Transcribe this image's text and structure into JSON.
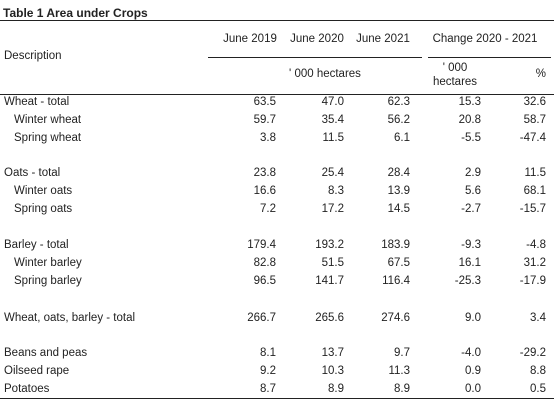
{
  "title": "Table 1 Area under Crops",
  "header": {
    "description": "Description",
    "columns": [
      "June 2019",
      "June 2020",
      "June 2021"
    ],
    "change_header": "Change 2020 - 2021",
    "unit_label": "' 000 hectares",
    "change_unit_line1": "' 000",
    "change_unit_line2": "hectares",
    "percent_label": "%"
  },
  "rows": [
    {
      "label": "Wheat - total",
      "indent": false,
      "values": [
        "63.5",
        "47.0",
        "62.3",
        "15.3",
        "32.6"
      ]
    },
    {
      "label": "Winter wheat",
      "indent": true,
      "values": [
        "59.7",
        "35.4",
        "56.2",
        "20.8",
        "58.7"
      ]
    },
    {
      "label": "Spring wheat",
      "indent": true,
      "values": [
        "3.8",
        "11.5",
        "6.1",
        "-5.5",
        "-47.4"
      ]
    },
    {
      "label": "Oats - total",
      "indent": false,
      "values": [
        "23.8",
        "25.4",
        "28.4",
        "2.9",
        "11.5"
      ]
    },
    {
      "label": "Winter oats",
      "indent": true,
      "values": [
        "16.6",
        "8.3",
        "13.9",
        "5.6",
        "68.1"
      ]
    },
    {
      "label": "Spring oats",
      "indent": true,
      "values": [
        "7.2",
        "17.2",
        "14.5",
        "-2.7",
        "-15.7"
      ]
    },
    {
      "label": "Barley - total",
      "indent": false,
      "values": [
        "179.4",
        "193.2",
        "183.9",
        "-9.3",
        "-4.8"
      ]
    },
    {
      "label": "Winter barley",
      "indent": true,
      "values": [
        "82.8",
        "51.5",
        "67.5",
        "16.1",
        "31.2"
      ]
    },
    {
      "label": "Spring barley",
      "indent": true,
      "values": [
        "96.5",
        "141.7",
        "116.4",
        "-25.3",
        "-17.9"
      ]
    },
    {
      "label": "Wheat, oats, barley - total",
      "indent": false,
      "values": [
        "266.7",
        "265.6",
        "274.6",
        "9.0",
        "3.4"
      ]
    },
    {
      "label": "Beans and peas",
      "indent": false,
      "values": [
        "8.1",
        "13.7",
        "9.7",
        "-4.0",
        "-29.2"
      ]
    },
    {
      "label": "Oilseed rape",
      "indent": false,
      "values": [
        "9.2",
        "10.3",
        "11.3",
        "0.9",
        "8.8"
      ]
    },
    {
      "label": "Potatoes",
      "indent": false,
      "values": [
        "8.7",
        "8.9",
        "8.9",
        "0.0",
        "0.5"
      ]
    }
  ]
}
